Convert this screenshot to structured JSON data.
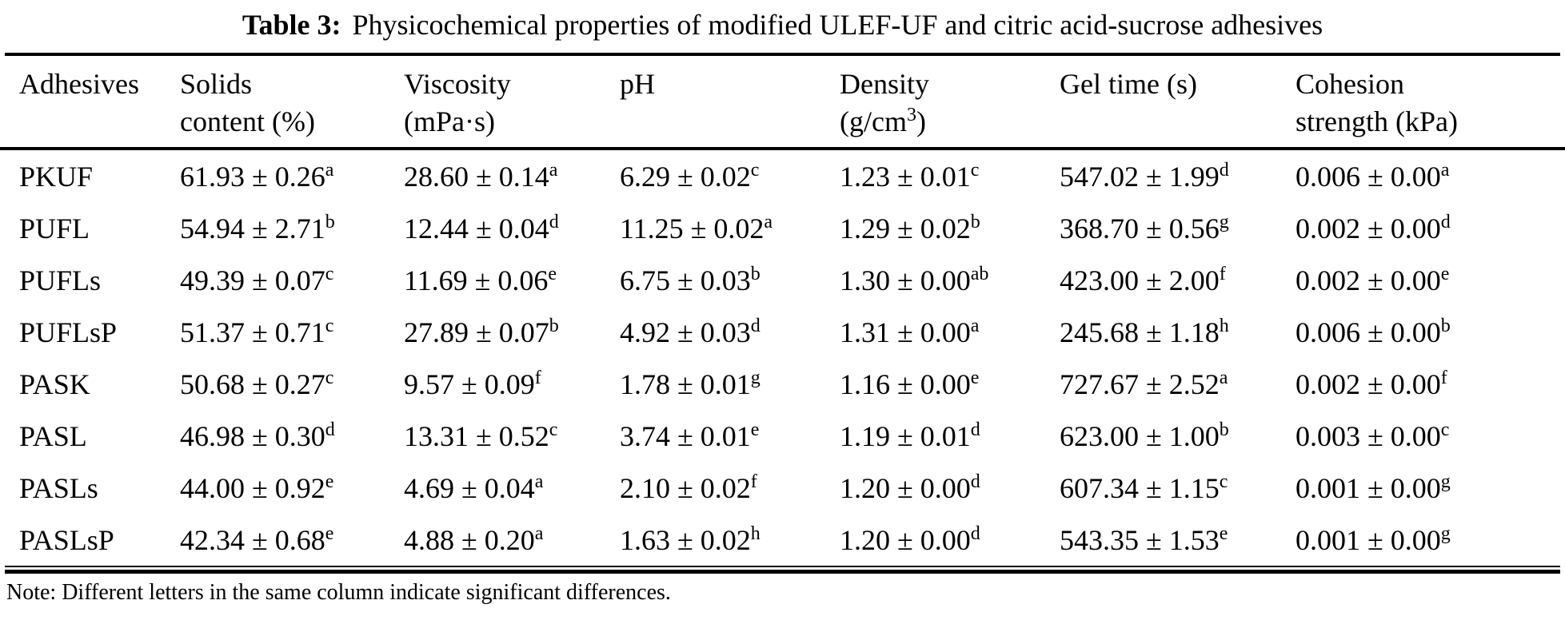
{
  "title": {
    "label": "Table 3:",
    "text": "Physicochemical properties of modified ULEF-UF and citric acid-sucrose adhesives"
  },
  "table": {
    "columns": [
      {
        "key": "adhesive",
        "lines": [
          [
            {
              "t": "Adhesives"
            }
          ]
        ]
      },
      {
        "key": "solids-content",
        "lines": [
          [
            {
              "t": "Solids"
            }
          ],
          [
            {
              "t": "content (%)"
            }
          ]
        ]
      },
      {
        "key": "viscosity",
        "lines": [
          [
            {
              "t": "Viscosity"
            }
          ],
          [
            {
              "t": "(mPa·s)"
            }
          ]
        ]
      },
      {
        "key": "ph",
        "lines": [
          [
            {
              "t": "pH"
            }
          ]
        ]
      },
      {
        "key": "density",
        "lines": [
          [
            {
              "t": "Density"
            }
          ],
          [
            {
              "t": "(g/cm"
            },
            {
              "t": "3",
              "sup": true
            },
            {
              "t": ")"
            }
          ]
        ]
      },
      {
        "key": "gel-time",
        "lines": [
          [
            {
              "t": "Gel time (s)"
            }
          ]
        ]
      },
      {
        "key": "cohesion-strength",
        "lines": [
          [
            {
              "t": "Cohesion"
            }
          ],
          [
            {
              "t": "strength (kPa)"
            }
          ]
        ]
      }
    ],
    "rows": [
      {
        "adhesive": "PKUF",
        "cells": [
          {
            "t": "61.93 ± 0.26",
            "sup": "a"
          },
          {
            "t": "28.60 ± 0.14",
            "sup": "a"
          },
          {
            "t": "6.29 ± 0.02",
            "sup": "c"
          },
          {
            "t": "1.23 ± 0.01",
            "sup": "c"
          },
          {
            "t": "547.02 ± 1.99",
            "sup": "d"
          },
          {
            "t": "0.006 ± 0.00",
            "sup": "a"
          }
        ]
      },
      {
        "adhesive": "PUFL",
        "cells": [
          {
            "t": "54.94 ± 2.71",
            "sup": "b"
          },
          {
            "t": "12.44 ± 0.04",
            "sup": "d"
          },
          {
            "t": "11.25 ± 0.02",
            "sup": "a"
          },
          {
            "t": "1.29 ± 0.02",
            "sup": "b"
          },
          {
            "t": "368.70 ± 0.56",
            "sup": "g"
          },
          {
            "t": "0.002 ± 0.00",
            "sup": "d"
          }
        ]
      },
      {
        "adhesive": "PUFLs",
        "cells": [
          {
            "t": "49.39 ± 0.07",
            "sup": "c"
          },
          {
            "t": "11.69 ± 0.06",
            "sup": "e"
          },
          {
            "t": "6.75 ± 0.03",
            "sup": "b"
          },
          {
            "t": "1.30 ± 0.00",
            "sup": "ab"
          },
          {
            "t": "423.00 ± 2.00",
            "sup": "f"
          },
          {
            "t": "0.002 ± 0.00",
            "sup": "e"
          }
        ]
      },
      {
        "adhesive": "PUFLsP",
        "cells": [
          {
            "t": "51.37 ± 0.71",
            "sup": "c"
          },
          {
            "t": "27.89 ± 0.07",
            "sup": "b"
          },
          {
            "t": "4.92 ± 0.03",
            "sup": "d"
          },
          {
            "t": "1.31 ± 0.00",
            "sup": "a"
          },
          {
            "t": "245.68 ± 1.18",
            "sup": "h"
          },
          {
            "t": "0.006 ± 0.00",
            "sup": "b"
          }
        ]
      },
      {
        "adhesive": "PASK",
        "cells": [
          {
            "t": "50.68 ± 0.27",
            "sup": "c"
          },
          {
            "t": "9.57 ± 0.09",
            "sup": "f"
          },
          {
            "t": "1.78 ± 0.01",
            "sup": "g"
          },
          {
            "t": "1.16 ± 0.00",
            "sup": "e"
          },
          {
            "t": "727.67 ± 2.52",
            "sup": "a"
          },
          {
            "t": "0.002 ± 0.00",
            "sup": "f"
          }
        ]
      },
      {
        "adhesive": "PASL",
        "cells": [
          {
            "t": "46.98 ± 0.30",
            "sup": "d"
          },
          {
            "t": "13.31 ± 0.52",
            "sup": "c"
          },
          {
            "t": "3.74 ± 0.01",
            "sup": "e"
          },
          {
            "t": "1.19 ± 0.01",
            "sup": "d"
          },
          {
            "t": "623.00 ± 1.00",
            "sup": "b"
          },
          {
            "t": "0.003 ± 0.00",
            "sup": "c"
          }
        ]
      },
      {
        "adhesive": "PASLs",
        "cells": [
          {
            "t": "44.00 ± 0.92",
            "sup": "e"
          },
          {
            "t": "4.69 ± 0.04",
            "sup": "a"
          },
          {
            "t": "2.10 ± 0.02",
            "sup": "f"
          },
          {
            "t": "1.20 ± 0.00",
            "sup": "d"
          },
          {
            "t": "607.34 ± 1.15",
            "sup": "c"
          },
          {
            "t": "0.001 ± 0.00",
            "sup": "g"
          }
        ]
      },
      {
        "adhesive": "PASLsP",
        "cells": [
          {
            "t": "42.34 ± 0.68",
            "sup": "e"
          },
          {
            "t": "4.88 ± 0.20",
            "sup": "a"
          },
          {
            "t": "1.63 ± 0.02",
            "sup": "h"
          },
          {
            "t": "1.20 ± 0.00",
            "sup": "d"
          },
          {
            "t": "543.35 ± 1.53",
            "sup": "e"
          },
          {
            "t": "0.001 ± 0.00",
            "sup": "g"
          }
        ]
      }
    ]
  },
  "note": "Note: Different letters in the same column indicate significant differences."
}
